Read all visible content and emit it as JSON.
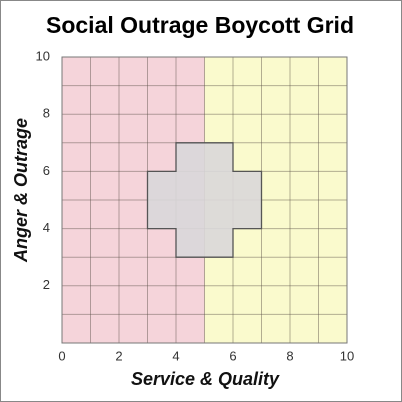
{
  "chart_data": {
    "type": "grid",
    "title": "Social Outrage Boycott Grid",
    "x_label": "Service & Quality",
    "y_label": "Anger & Outrage",
    "xlim": [
      0,
      10
    ],
    "ylim": [
      0,
      10
    ],
    "xticks": [
      0,
      2,
      4,
      6,
      8,
      10
    ],
    "yticks": [
      2,
      4,
      6,
      8,
      10
    ],
    "minor_grid": [
      1,
      3,
      5,
      7,
      9
    ],
    "grid": true,
    "regions": [
      {
        "xlim": [
          0,
          5
        ],
        "color": "#f5d4da"
      },
      {
        "xlim": [
          5,
          10
        ],
        "color": "#fafacd"
      }
    ],
    "shape": {
      "x": [
        4,
        6,
        6,
        7,
        7,
        6,
        6,
        4,
        4,
        3,
        3,
        4
      ],
      "y": [
        7,
        7,
        6,
        6,
        4,
        4,
        3,
        3,
        4,
        4,
        6,
        6
      ],
      "color": "#d9d7d9"
    }
  }
}
